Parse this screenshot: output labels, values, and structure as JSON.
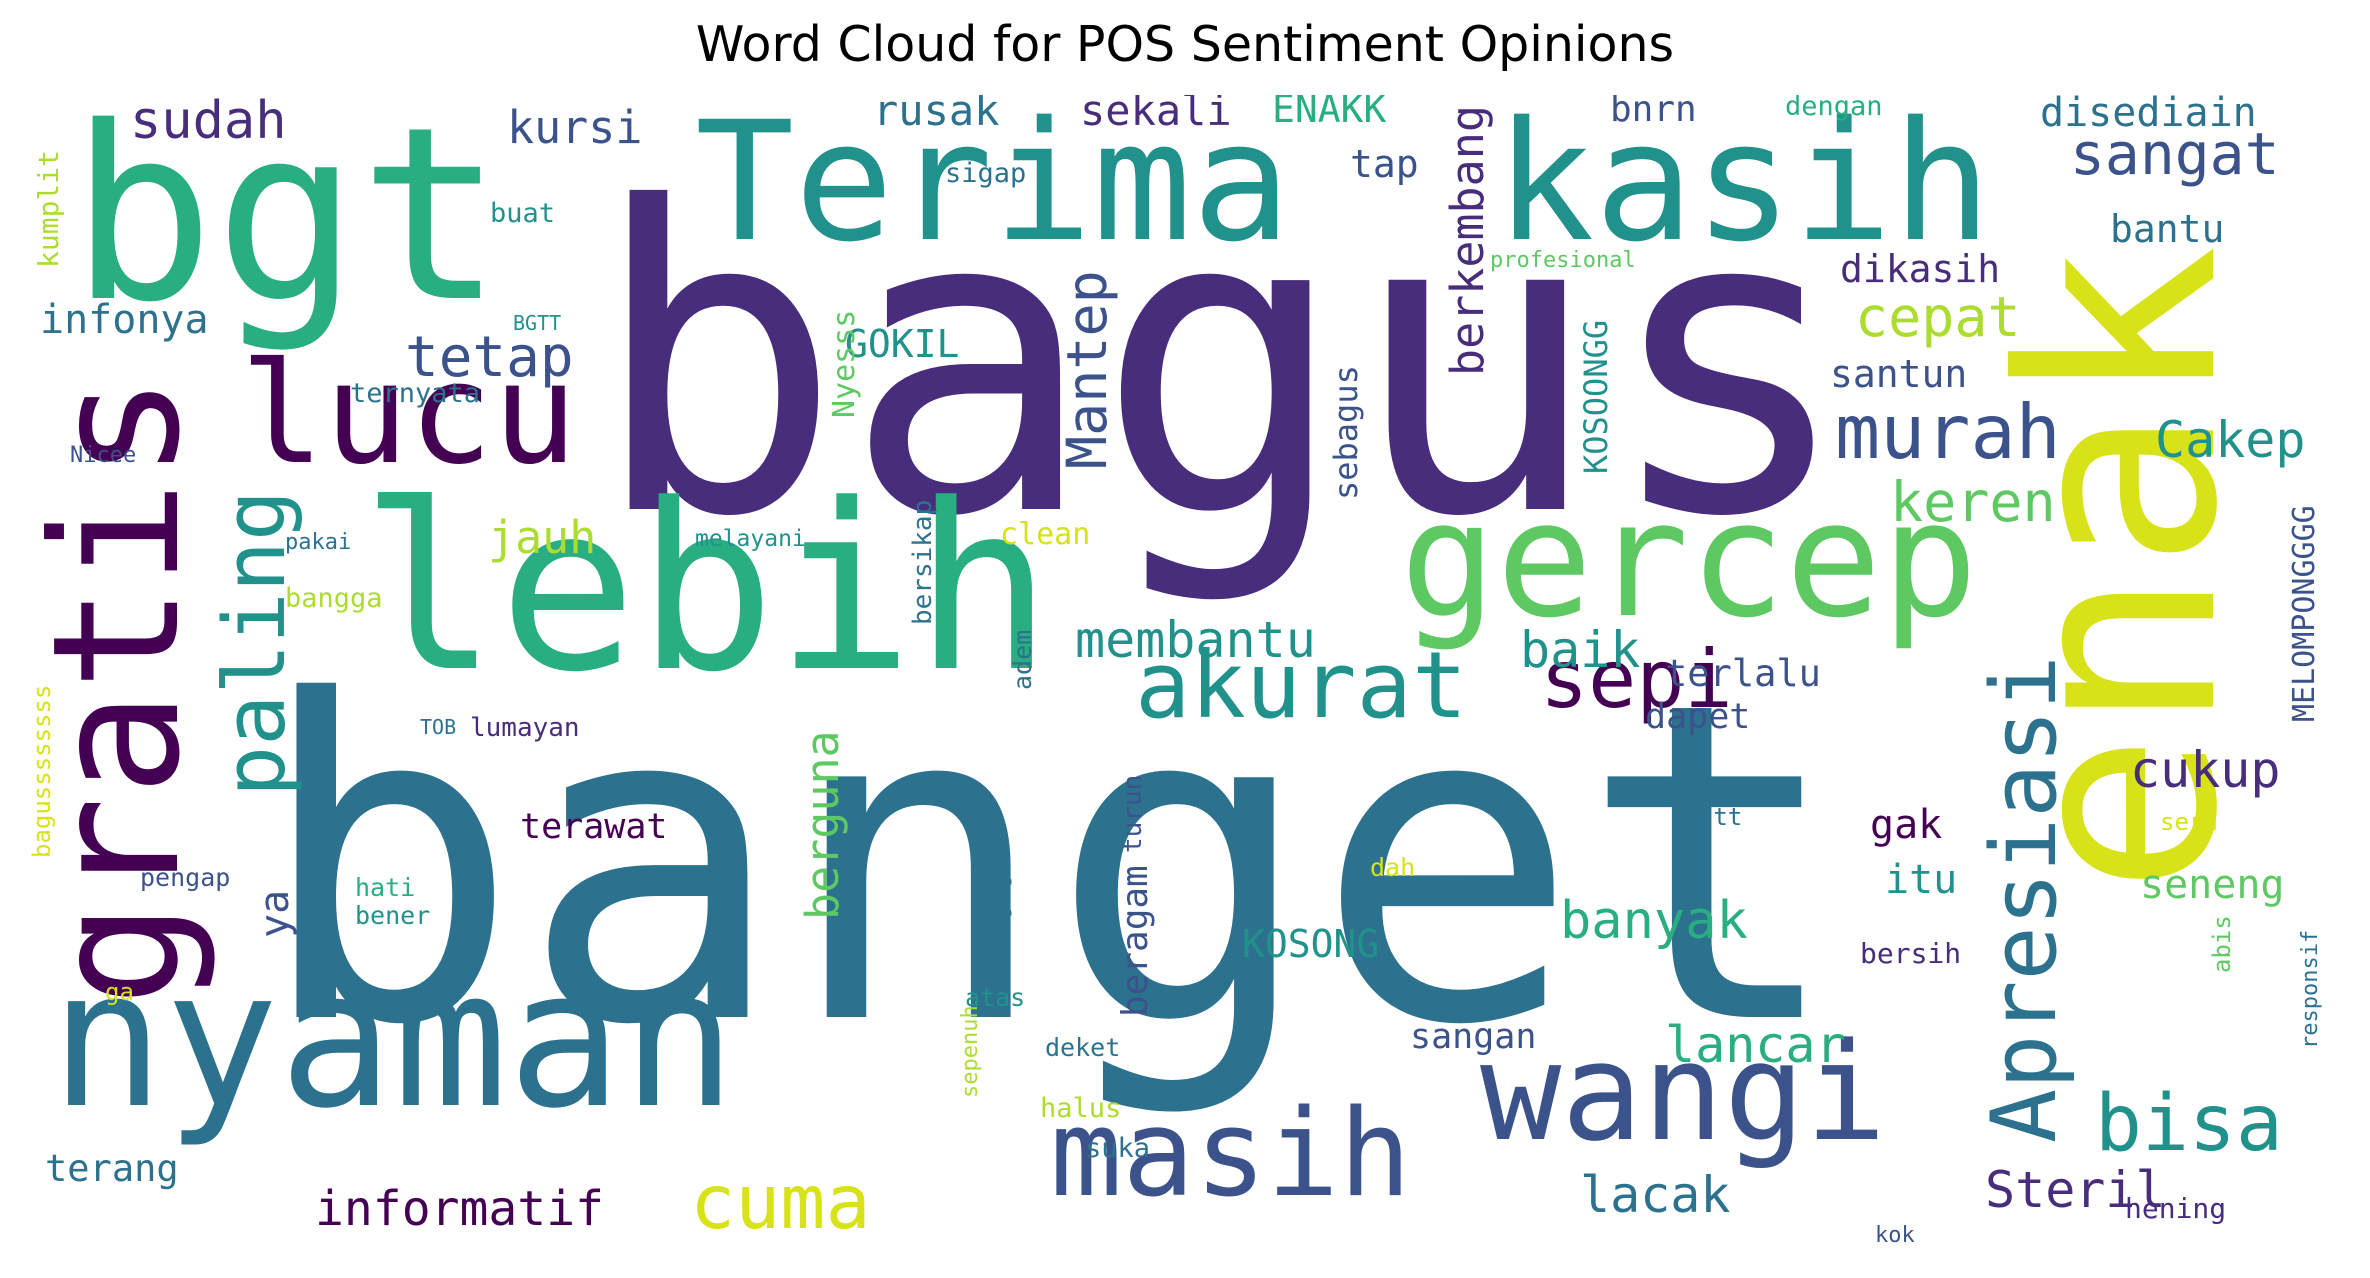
{
  "title": "Word Cloud for POS Sentiment Opinions",
  "palette": {
    "dark_purple": "#440154",
    "indigo": "#472d7b",
    "blue": "#3b528b",
    "steel": "#2c728e",
    "teal": "#21918c",
    "green_teal": "#28ae80",
    "green": "#5ec962",
    "lime": "#addc30",
    "yellow": "#d8e219"
  },
  "words": [
    {
      "text": "bagus",
      "color": "#472d7b"
    },
    {
      "text": "banget",
      "color": "#2c728e"
    },
    {
      "text": "enak",
      "color": "#d8e219"
    },
    {
      "text": "Terima",
      "color": "#21918c"
    },
    {
      "text": "kasih",
      "color": "#21918c"
    },
    {
      "text": "bgt",
      "color": "#28ae80"
    },
    {
      "text": "nyaman",
      "color": "#2c728e"
    },
    {
      "text": "lebih",
      "color": "#28ae80"
    },
    {
      "text": "gratis",
      "color": "#440154"
    },
    {
      "text": "gercep",
      "color": "#5ec962"
    },
    {
      "text": "lucu",
      "color": "#440154"
    },
    {
      "text": "wangi",
      "color": "#3b528b"
    },
    {
      "text": "masih",
      "color": "#3b528b"
    },
    {
      "text": "Apresiasi",
      "color": "#2c728e"
    },
    {
      "text": "paling",
      "color": "#21918c"
    },
    {
      "text": "akurat",
      "color": "#21918c"
    },
    {
      "text": "murah",
      "color": "#3b528b"
    },
    {
      "text": "sepi",
      "color": "#440154"
    },
    {
      "text": "bisa",
      "color": "#21918c"
    },
    {
      "text": "cuma",
      "color": "#d8e219"
    },
    {
      "text": "sudah",
      "color": "#472d7b"
    },
    {
      "text": "sangat",
      "color": "#3b528b"
    },
    {
      "text": "tetap",
      "color": "#3b528b"
    },
    {
      "text": "Mantep",
      "color": "#3b528b"
    },
    {
      "text": "berkembang",
      "color": "#472d7b"
    },
    {
      "text": "cepat",
      "color": "#addc30"
    },
    {
      "text": "Cakep",
      "color": "#21918c"
    },
    {
      "text": "keren",
      "color": "#5ec962"
    },
    {
      "text": "membantu",
      "color": "#21918c"
    },
    {
      "text": "baik",
      "color": "#21918c"
    },
    {
      "text": "jauh",
      "color": "#addc30"
    },
    {
      "text": "berguna",
      "color": "#5ec962"
    },
    {
      "text": "banyak",
      "color": "#28ae80"
    },
    {
      "text": "cukup",
      "color": "#472d7b"
    },
    {
      "text": "lancar",
      "color": "#28ae80"
    },
    {
      "text": "lacak",
      "color": "#2c728e"
    },
    {
      "text": "Steril",
      "color": "#472d7b"
    },
    {
      "text": "informatif",
      "color": "#440154"
    },
    {
      "text": "kursi",
      "color": "#3b528b"
    },
    {
      "text": "rusak",
      "color": "#2c728e"
    },
    {
      "text": "sekali",
      "color": "#472d7b"
    },
    {
      "text": "ENAKK",
      "color": "#28ae80"
    },
    {
      "text": "tap",
      "color": "#3b528b"
    },
    {
      "text": "bnrn",
      "color": "#3b528b"
    },
    {
      "text": "dengan",
      "color": "#28ae80"
    },
    {
      "text": "disediain",
      "color": "#2c728e"
    },
    {
      "text": "bantu",
      "color": "#2c728e"
    },
    {
      "text": "dikasih",
      "color": "#472d7b"
    },
    {
      "text": "santun",
      "color": "#3b528b"
    },
    {
      "text": "infonya",
      "color": "#2c728e"
    },
    {
      "text": "kumplit",
      "color": "#addc30"
    },
    {
      "text": "buat",
      "color": "#21918c"
    },
    {
      "text": "sigap",
      "color": "#2c728e"
    },
    {
      "text": "profesional",
      "color": "#5ec962"
    },
    {
      "text": "GOKIL",
      "color": "#21918c"
    },
    {
      "text": "Nyesss",
      "color": "#5ec962"
    },
    {
      "text": "KOSOONGG",
      "color": "#21918c"
    },
    {
      "text": "sebagus",
      "color": "#3b528b"
    },
    {
      "text": "MELOMPONGGGG",
      "color": "#3b528b"
    },
    {
      "text": "BGTT",
      "color": "#21918c"
    },
    {
      "text": "ternyata",
      "color": "#2c728e"
    },
    {
      "text": "Nicee",
      "color": "#3b528b"
    },
    {
      "text": "pakai",
      "color": "#2c728e"
    },
    {
      "text": "melayani",
      "color": "#21918c"
    },
    {
      "text": "clean",
      "color": "#d8e219"
    },
    {
      "text": "bangga",
      "color": "#addc30"
    },
    {
      "text": "bersikap",
      "color": "#2c728e"
    },
    {
      "text": "adem",
      "color": "#2c728e"
    },
    {
      "text": "terlalu",
      "color": "#3b528b"
    },
    {
      "text": "dapet",
      "color": "#3b528b"
    },
    {
      "text": "turun",
      "color": "#3b528b"
    },
    {
      "text": "TOB",
      "color": "#2c728e"
    },
    {
      "text": "lumayan",
      "color": "#472d7b"
    },
    {
      "text": "bagussssssss",
      "color": "#d8e219"
    },
    {
      "text": "terawat",
      "color": "#440154"
    },
    {
      "text": "ya",
      "color": "#3b528b"
    },
    {
      "text": "beragam",
      "color": "#3b528b"
    },
    {
      "text": "KOSONG",
      "color": "#21918c"
    },
    {
      "text": "gak",
      "color": "#440154"
    },
    {
      "text": "bgttt",
      "color": "#2c728e"
    },
    {
      "text": "seru",
      "color": "#d8e219"
    },
    {
      "text": "seneng",
      "color": "#5ec962"
    },
    {
      "text": "itu",
      "color": "#21918c"
    },
    {
      "text": "pengap",
      "color": "#3b528b"
    },
    {
      "text": "hati",
      "color": "#28ae80"
    },
    {
      "text": "bener",
      "color": "#21918c"
    },
    {
      "text": "dah",
      "color": "#d8e219"
    },
    {
      "text": "jajan",
      "color": "#2c728e"
    },
    {
      "text": "bersih",
      "color": "#472d7b"
    },
    {
      "text": "abis",
      "color": "#5ec962"
    },
    {
      "text": "responsif",
      "color": "#2c728e"
    },
    {
      "text": "ga",
      "color": "#d8e219"
    },
    {
      "text": "atas",
      "color": "#21918c"
    },
    {
      "text": "deket",
      "color": "#2c728e"
    },
    {
      "text": "sangan",
      "color": "#3b528b"
    },
    {
      "text": "terang",
      "color": "#2c728e"
    },
    {
      "text": "sepenuh",
      "color": "#addc30"
    },
    {
      "text": "halus",
      "color": "#addc30"
    },
    {
      "text": "suka",
      "color": "#2c728e"
    },
    {
      "text": "kok",
      "color": "#3b528b"
    },
    {
      "text": "hening",
      "color": "#472d7b"
    }
  ]
}
